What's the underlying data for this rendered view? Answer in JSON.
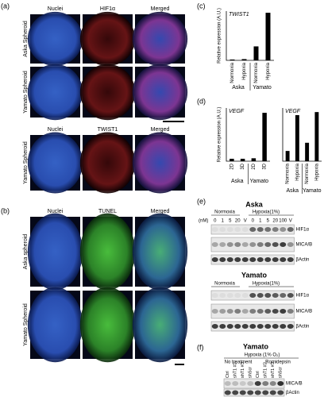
{
  "figure": {
    "panel_labels": [
      "(a)",
      "(b)",
      "(c)",
      "(d)",
      "(e)",
      "(f)"
    ],
    "panel_a": {
      "columns_1": [
        "Nuclei",
        "HIF1α",
        "Merged"
      ],
      "rows_1": [
        "Aska Spheroid",
        "Yamato Spheroid"
      ],
      "columns_2": [
        "Nuclei",
        "TWIST1",
        "Merged"
      ],
      "rows_2": [
        "Yamato Spheroid"
      ]
    },
    "panel_b": {
      "columns": [
        "Nuclei",
        "TUNEL",
        "Merged"
      ],
      "rows": [
        "Aska spheroid",
        "Yamato Spheroid"
      ]
    },
    "panel_e": {
      "blots": [
        {
          "title": "Aska",
          "unit": "(nM)",
          "conditions": [
            "Normoxia",
            "Hypoxia(1%)"
          ],
          "lanes": [
            "0",
            "1",
            "5",
            "20",
            "V",
            "0",
            "1",
            "5",
            "20",
            "100",
            "V"
          ],
          "bands": [
            "HIF1α",
            "MICA/B",
            "βActin"
          ]
        },
        {
          "title": "Yamato",
          "conditions": [
            "Normoxia",
            "Hypoxia(1%)"
          ],
          "bands": [
            "HIF1α",
            "MICA/B",
            "βActin"
          ]
        }
      ]
    },
    "panel_f": {
      "title": "Yamato",
      "condition": "Hypoxia (1% O₂)",
      "treatments": [
        "No treatment",
        "Romidepsin"
      ],
      "lanes": [
        "Ctrl",
        "shT1 #2",
        "shT1 #3",
        "shScr",
        "Ctrl",
        "shT1 #2",
        "shT1 #3",
        "shScr"
      ],
      "bands": [
        "MICA/B",
        "βActin"
      ]
    }
  },
  "chart_data": [
    {
      "type": "bar",
      "title": "TWIST1",
      "y_label": "Relative expression (A.U.)",
      "categories": [
        "Normoxia",
        "Hypoxia",
        "Normoxia",
        "Hypoxia"
      ],
      "groups": [
        "Aska",
        "Yamato"
      ],
      "values": [
        1,
        1.5,
        17,
        58
      ],
      "ylim": [
        0,
        60
      ],
      "color": "#000000"
    },
    {
      "type": "bar",
      "title": "VEGF",
      "y_label": "Relative expression (A.U.)",
      "categories": [
        "2D",
        "3D",
        "2D",
        "3D"
      ],
      "groups": [
        "Aska",
        "Yamato"
      ],
      "values": [
        1,
        1,
        1.2,
        20
      ],
      "ylim": [
        0,
        22
      ],
      "color": "#000000"
    },
    {
      "type": "bar",
      "title": "VEGF",
      "categories": [
        "Normoxia",
        "Hypoxia",
        "Normoxia",
        "Hypoxia"
      ],
      "groups": [
        "Aska",
        "Yamato"
      ],
      "values": [
        1,
        4.5,
        1.8,
        4.8
      ],
      "ylim": [
        0,
        5.2
      ],
      "color": "#000000"
    }
  ]
}
